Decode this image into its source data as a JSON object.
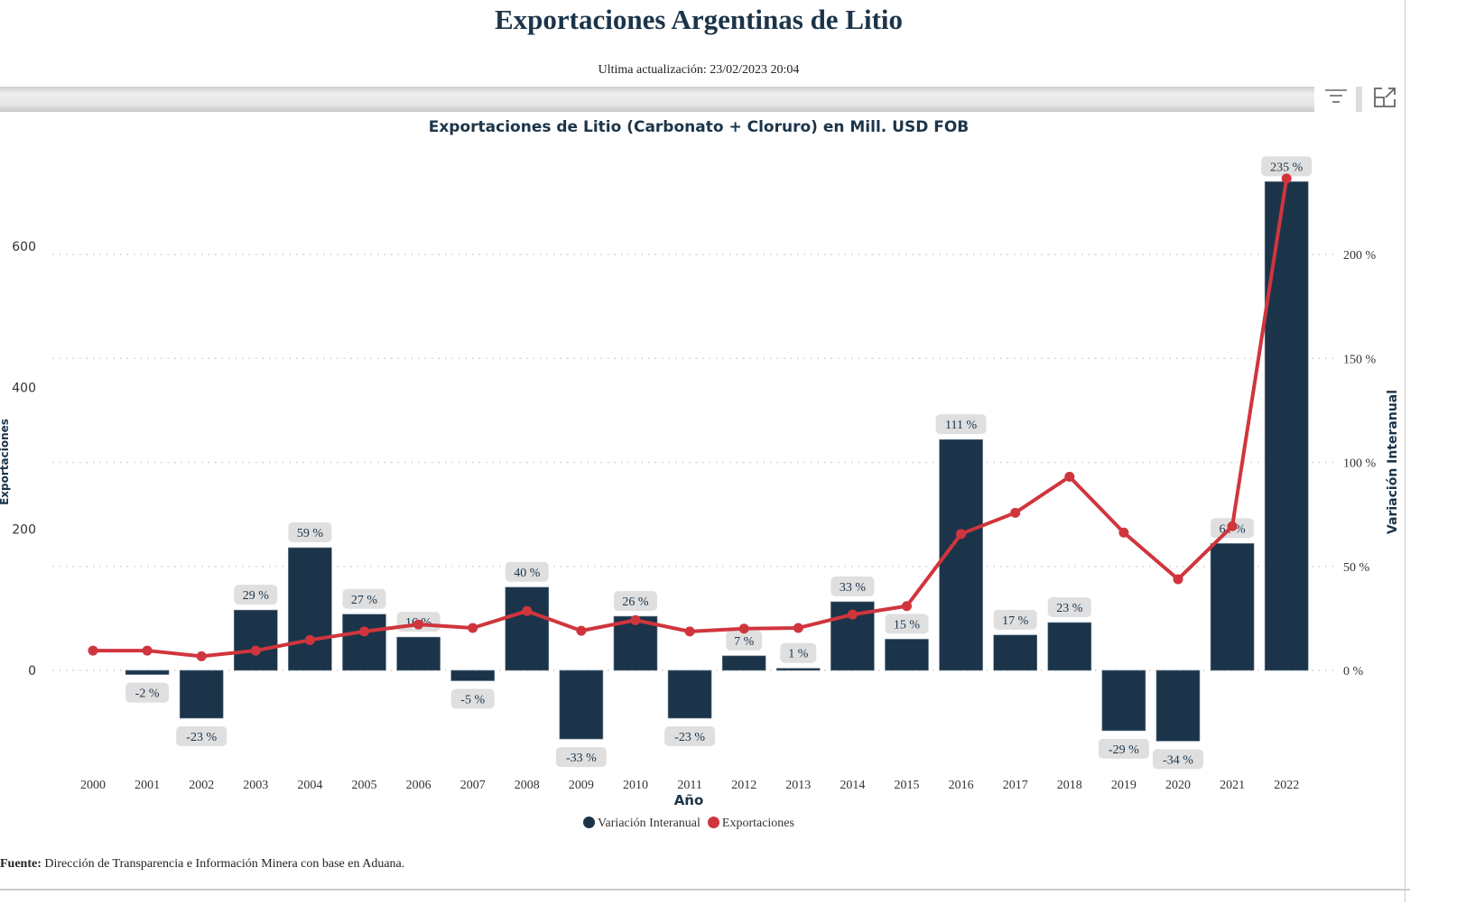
{
  "header": {
    "title": "Exportaciones Argentinas de Litio",
    "updated": "Ultima actualización: 23/02/2023 20:04"
  },
  "toolbar": {
    "filter_icon": "filter-icon",
    "expand_icon": "focus-mode-icon"
  },
  "footer": {
    "source_label": "Fuente:",
    "source_text": " Dirección de Transparencia e Información Minera con base en Aduana."
  },
  "colors": {
    "bar": "#1b3449",
    "line": "#d0353d",
    "label_bg": "#dcdcdc"
  },
  "chart_data": {
    "type": "bar+line",
    "title": "Exportaciones de Litio (Carbonato + Cloruro) en Mill. USD FOB",
    "xlabel": "Año",
    "ylabel_left": "Exportaciones",
    "ylabel_right": "Variación Interanual",
    "ylim_left": [
      -150,
      700
    ],
    "yticks_left": [
      "0",
      "200",
      "400",
      "600"
    ],
    "ylim_right": [
      -50,
      235
    ],
    "yticks_right": [
      "0 %",
      "50 %",
      "100 %",
      "150 %",
      "200 %"
    ],
    "grid": true,
    "legend_position": "bottom",
    "categories": [
      "2000",
      "2001",
      "2002",
      "2003",
      "2004",
      "2005",
      "2006",
      "2007",
      "2008",
      "2009",
      "2010",
      "2011",
      "2012",
      "2013",
      "2014",
      "2015",
      "2016",
      "2017",
      "2018",
      "2019",
      "2020",
      "2021",
      "2022"
    ],
    "series": [
      {
        "name": "Variación Interanual",
        "type": "bar",
        "axis": "right",
        "unit": "%",
        "values": [
          null,
          -2,
          -23,
          29,
          59,
          27,
          16,
          -5,
          40,
          -33,
          26,
          -23,
          7,
          1,
          33,
          15,
          111,
          17,
          23,
          -29,
          -34,
          61,
          235
        ],
        "labels": [
          null,
          "-2 %",
          "-23 %",
          "29 %",
          "59 %",
          "27 %",
          "16 %",
          "-5 %",
          "40 %",
          "-33 %",
          "26 %",
          "-23 %",
          "7 %",
          "1 %",
          "33 %",
          "15 %",
          "111 %",
          "17 %",
          "23 %",
          "-29 %",
          "-34 %",
          "61 %",
          "235 %"
        ]
      },
      {
        "name": "Exportaciones",
        "type": "line",
        "axis": "left",
        "values": [
          28,
          28,
          20,
          28,
          43,
          55,
          65,
          60,
          84,
          56,
          71,
          55,
          59,
          60,
          79,
          91,
          193,
          223,
          274,
          195,
          129,
          204,
          696
        ]
      }
    ]
  }
}
